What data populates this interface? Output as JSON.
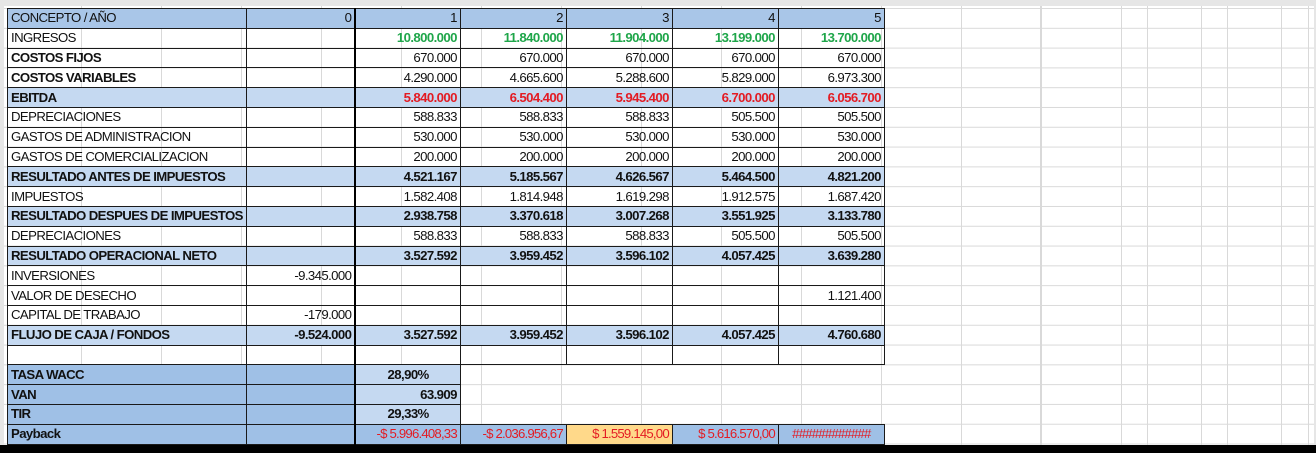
{
  "header": {
    "concept_label": "CONCEPTO /   AÑO",
    "years": [
      "0",
      "1",
      "2",
      "3",
      "4",
      "5"
    ]
  },
  "rows": [
    {
      "label": "INGRESOS",
      "style": "plain",
      "values": [
        "",
        "10.800.000",
        "11.840.000",
        "11.904.000",
        "13.199.000",
        "13.700.000"
      ],
      "value_color": "#1fa64a"
    },
    {
      "label": "COSTOS FIJOS",
      "style": "bold-label",
      "values": [
        "",
        "670.000",
        "670.000",
        "670.000",
        "670.000",
        "670.000"
      ]
    },
    {
      "label": "COSTOS VARIABLES",
      "style": "bold-label",
      "values": [
        "",
        "4.290.000",
        "4.665.600",
        "5.288.600",
        "5.829.000",
        "6.973.300"
      ]
    },
    {
      "label": "EBITDA",
      "style": "band",
      "values": [
        "",
        "5.840.000",
        "6.504.400",
        "5.945.400",
        "6.700.000",
        "6.056.700"
      ],
      "value_color": "#e31b23"
    },
    {
      "label": "DEPRECIACIONES",
      "style": "plain",
      "values": [
        "",
        "588.833",
        "588.833",
        "588.833",
        "505.500",
        "505.500"
      ]
    },
    {
      "label": "GASTOS DE ADMINISTRACION",
      "style": "plain",
      "values": [
        "",
        "530.000",
        "530.000",
        "530.000",
        "530.000",
        "530.000"
      ]
    },
    {
      "label": "GASTOS DE COMERCIALIZACION",
      "style": "plain",
      "values": [
        "",
        "200.000",
        "200.000",
        "200.000",
        "200.000",
        "200.000"
      ]
    },
    {
      "label": "RESULTADO ANTES DE IMPUESTOS",
      "style": "band",
      "values": [
        "",
        "4.521.167",
        "5.185.567",
        "4.626.567",
        "5.464.500",
        "4.821.200"
      ]
    },
    {
      "label": "IMPUESTOS",
      "style": "plain",
      "values": [
        "",
        "1.582.408",
        "1.814.948",
        "1.619.298",
        "1.912.575",
        "1.687.420"
      ]
    },
    {
      "label": "RESULTADO DESPUES DE IMPUESTOS",
      "style": "band",
      "values": [
        "",
        "2.938.758",
        "3.370.618",
        "3.007.268",
        "3.551.925",
        "3.133.780"
      ]
    },
    {
      "label": "DEPRECIACIONES",
      "style": "plain",
      "values": [
        "",
        "588.833",
        "588.833",
        "588.833",
        "505.500",
        "505.500"
      ]
    },
    {
      "label": "RESULTADO OPERACIONAL NETO",
      "style": "band",
      "values": [
        "",
        "3.527.592",
        "3.959.452",
        "3.596.102",
        "4.057.425",
        "3.639.280"
      ]
    },
    {
      "label": "INVERSIONES",
      "style": "plain",
      "values": [
        "-9.345.000",
        "",
        "",
        "",
        "",
        ""
      ]
    },
    {
      "label": "VALOR DE DESECHO",
      "style": "plain",
      "values": [
        "",
        "",
        "",
        "",
        "",
        "1.121.400"
      ]
    },
    {
      "label": "CAPITAL DE TRABAJO",
      "style": "plain",
      "values": [
        "-179.000",
        "",
        "",
        "",
        "",
        ""
      ]
    },
    {
      "label": "FLUJO DE CAJA / FONDOS",
      "style": "band",
      "values": [
        "-9.524.000",
        "3.527.592",
        "3.959.452",
        "3.596.102",
        "4.057.425",
        "4.760.680"
      ]
    },
    {
      "label": "",
      "style": "plain",
      "values": [
        "",
        "",
        "",
        "",
        "",
        ""
      ]
    }
  ],
  "indicators": [
    {
      "label": "TASA WACC",
      "value": "28,90%"
    },
    {
      "label": "VAN",
      "value": "63.909"
    },
    {
      "label": "TIR",
      "value": "29,33%"
    }
  ],
  "payback": {
    "label": "Payback",
    "values": [
      "-$ 5.996.408,33",
      "-$ 2.036.956,67",
      "$ 1.559.145,00",
      "$ 5.616.570,00",
      "############"
    ],
    "highlight_index": 2,
    "text_color": "#e31b23",
    "highlight_color": "#ffd98a"
  },
  "colors": {
    "header_fill": "#a9c6e8",
    "band_fill": "#c5d9f1",
    "income_green": "#1fa64a",
    "ebitda_red": "#e31b23"
  }
}
